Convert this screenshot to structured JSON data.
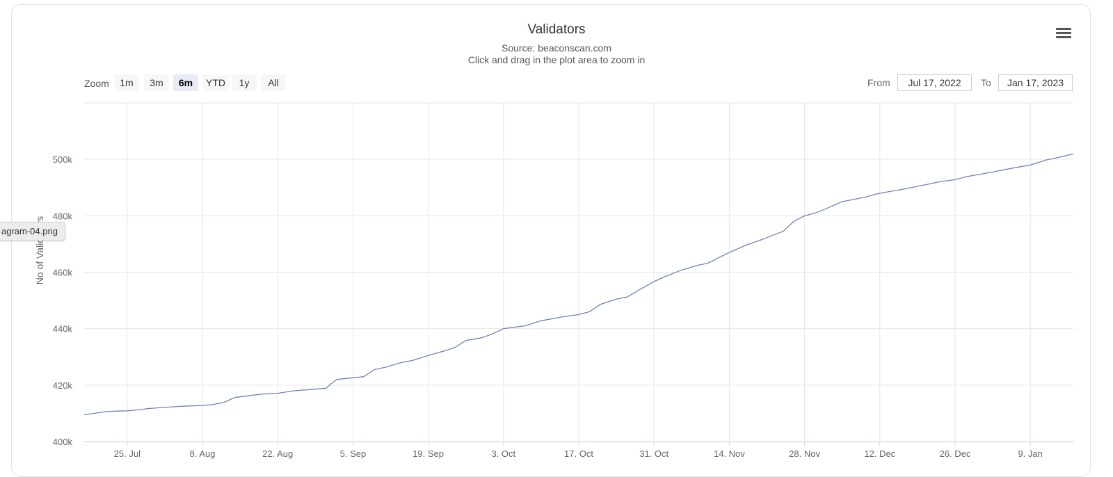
{
  "title": "Validators",
  "subtitle": "Source: beaconscan.com",
  "instruction": "Click and drag in the plot area to zoom in",
  "file_tag": "agram-04.png",
  "menu_icon": "hamburger-menu-icon",
  "range_selector": {
    "zoom_label": "Zoom",
    "buttons": [
      "1m",
      "3m",
      "6m",
      "YTD",
      "1y",
      "All"
    ],
    "active": "6m",
    "from_label": "From",
    "from_value": "Jul 17, 2022",
    "to_label": "To",
    "to_value": "Jan 17, 2023"
  },
  "colors": {
    "line": "#6d83b2",
    "grid": "#e6e6e6",
    "active_button": "#e6ebf5"
  },
  "chart_data": {
    "type": "line",
    "title": "Validators",
    "subtitle": "Source: beaconscan.com",
    "ylabel": "No of Validators",
    "xlabel": "",
    "ylim": [
      400000,
      520000
    ],
    "xlim": [
      "2022-07-17",
      "2023-01-17"
    ],
    "grid": true,
    "y_ticks": [
      400000,
      420000,
      440000,
      460000,
      480000,
      500000
    ],
    "y_tick_labels": [
      "400k",
      "420k",
      "440k",
      "460k",
      "480k",
      "500k"
    ],
    "x_ticks": [
      "2022-07-25",
      "2022-08-08",
      "2022-08-22",
      "2022-09-05",
      "2022-09-19",
      "2022-10-03",
      "2022-10-17",
      "2022-10-31",
      "2022-11-14",
      "2022-11-28",
      "2022-12-12",
      "2022-12-26",
      "2023-01-09"
    ],
    "x_tick_labels": [
      "25. Jul",
      "8. Aug",
      "22. Aug",
      "5. Sep",
      "19. Sep",
      "3. Oct",
      "17. Oct",
      "31. Oct",
      "14. Nov",
      "28. Nov",
      "12. Dec",
      "26. Dec",
      "9. Jan"
    ],
    "series": [
      {
        "x": [
          "2022-07-17",
          "2022-07-19",
          "2022-07-21",
          "2022-07-23",
          "2022-07-25",
          "2022-07-27",
          "2022-07-29",
          "2022-08-01",
          "2022-08-04",
          "2022-08-08",
          "2022-08-10",
          "2022-08-12",
          "2022-08-14",
          "2022-08-16",
          "2022-08-19",
          "2022-08-22",
          "2022-08-25",
          "2022-08-28",
          "2022-08-31",
          "2022-09-01",
          "2022-09-02",
          "2022-09-05",
          "2022-09-07",
          "2022-09-09",
          "2022-09-11",
          "2022-09-14",
          "2022-09-16",
          "2022-09-19",
          "2022-09-22",
          "2022-09-24",
          "2022-09-26",
          "2022-09-29",
          "2022-10-01",
          "2022-10-03",
          "2022-10-07",
          "2022-10-10",
          "2022-10-14",
          "2022-10-17",
          "2022-10-19",
          "2022-10-21",
          "2022-10-24",
          "2022-10-26",
          "2022-10-28",
          "2022-10-31",
          "2022-11-02",
          "2022-11-05",
          "2022-11-08",
          "2022-11-10",
          "2022-11-14",
          "2022-11-17",
          "2022-11-20",
          "2022-11-22",
          "2022-11-24",
          "2022-11-26",
          "2022-11-28",
          "2022-11-30",
          "2022-12-02",
          "2022-12-05",
          "2022-12-09",
          "2022-12-12",
          "2022-12-16",
          "2022-12-20",
          "2022-12-23",
          "2022-12-26",
          "2022-12-28",
          "2023-01-02",
          "2023-01-06",
          "2023-01-09",
          "2023-01-12",
          "2023-01-15",
          "2023-01-17"
        ],
        "values": [
          409500,
          410000,
          410600,
          410800,
          410900,
          411200,
          411700,
          412100,
          412500,
          412800,
          413100,
          413900,
          415600,
          416100,
          416800,
          417100,
          418000,
          418400,
          418900,
          420600,
          422000,
          422600,
          423000,
          425500,
          426300,
          428000,
          428700,
          430500,
          432100,
          433400,
          435800,
          436800,
          438200,
          440000,
          441000,
          442800,
          444200,
          445000,
          446000,
          448600,
          450500,
          451200,
          453500,
          456700,
          458400,
          460700,
          462400,
          463200,
          467000,
          469500,
          471500,
          473000,
          474500,
          478000,
          480000,
          481000,
          482500,
          485000,
          486500,
          488000,
          489300,
          490800,
          492000,
          492800,
          493800,
          495500,
          497000,
          498000,
          499800,
          501000,
          502000
        ]
      }
    ]
  }
}
